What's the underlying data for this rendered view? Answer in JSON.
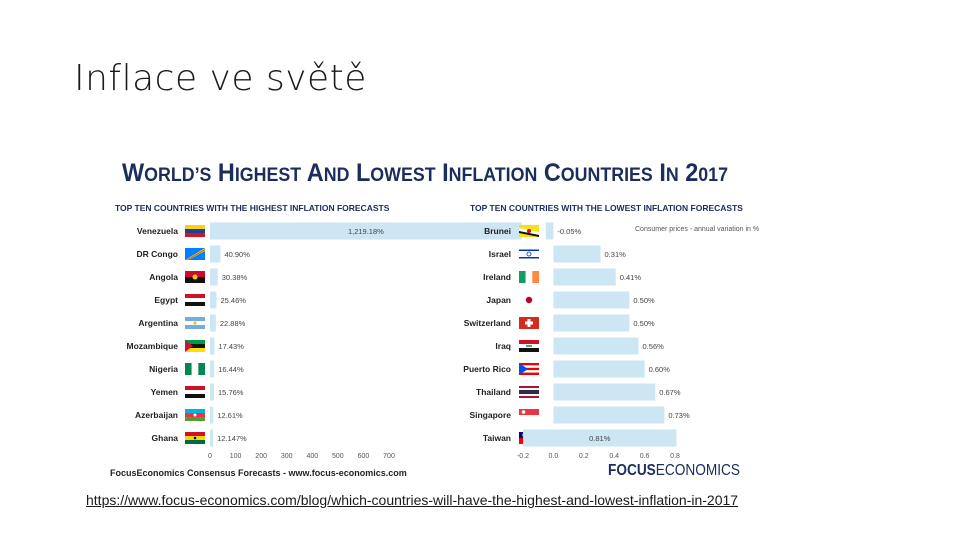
{
  "slide": {
    "title": "Inflace ve světě",
    "link": "https://www.focus-economics.com/blog/which-countries-will-have-the-highest-and-lowest-inflation-in-2017"
  },
  "infographic": {
    "title": "World’s Highest and Lowest Inflation Countries in 2017",
    "footer_source": "FocusEconomics Consensus Forecasts - www.focus-economics.com",
    "logo_text_bold": "FOCUS",
    "logo_text_light": "ECONOMICS",
    "colors": {
      "bar": "#cce6f4",
      "title": "#1b2d5c",
      "text": "#333333",
      "label_bold": "#222222"
    }
  },
  "chart_data": [
    {
      "type": "bar",
      "orientation": "horizontal",
      "title": "TOP TEN COUNTRIES WITH THE HIGHEST INFLATION FORECASTS",
      "categories": [
        "Venezuela",
        "DR Congo",
        "Angola",
        "Egypt",
        "Argentina",
        "Mozambique",
        "Nigeria",
        "Yemen",
        "Azerbaijan",
        "Ghana"
      ],
      "values": [
        1219.18,
        40.9,
        30.38,
        25.46,
        22.88,
        17.43,
        16.44,
        15.76,
        12.61,
        12.147
      ],
      "data_labels": [
        "1,219.18%",
        "40.90%",
        "30.38%",
        "25.46%",
        "22.88%",
        "17.43%",
        "16.44%",
        "15.76%",
        "12.61%",
        "12.147%"
      ],
      "flags": [
        "flag-venezuela",
        "flag-dr-congo",
        "flag-angola",
        "flag-egypt",
        "flag-argentina",
        "flag-mozambique",
        "flag-nigeria",
        "flag-yemen",
        "flag-azerbaijan",
        "flag-ghana"
      ],
      "xlim": [
        0,
        700
      ],
      "xticks": [
        "0",
        "100",
        "200",
        "300",
        "400",
        "500",
        "600",
        "700"
      ],
      "grid": false
    },
    {
      "type": "bar",
      "orientation": "horizontal",
      "title": "TOP TEN COUNTRIES WITH THE LOWEST INFLATION FORECASTS",
      "annotation": "Consumer prices - annual variation in %",
      "categories": [
        "Brunei",
        "Israel",
        "Ireland",
        "Japan",
        "Switzerland",
        "Iraq",
        "Puerto Rico",
        "Thailand",
        "Singapore",
        "Taiwan"
      ],
      "values": [
        -0.05,
        0.31,
        0.41,
        0.5,
        0.5,
        0.56,
        0.6,
        0.67,
        0.73,
        0.81
      ],
      "data_labels": [
        "-0.05%",
        "0.31%",
        "0.41%",
        "0.50%",
        "0.50%",
        "0.56%",
        "0.60%",
        "0.67%",
        "0.73%",
        "0.81%"
      ],
      "flags": [
        "flag-brunei",
        "flag-israel",
        "flag-ireland",
        "flag-japan",
        "flag-switzerland",
        "flag-iraq",
        "flag-puerto-rico",
        "flag-thailand",
        "flag-singapore",
        "flag-taiwan"
      ],
      "xlim": [
        -0.2,
        0.8
      ],
      "xticks": [
        "-0.2",
        "0.0",
        "0.2",
        "0.4",
        "0.6",
        "0.8"
      ],
      "grid": false
    }
  ]
}
